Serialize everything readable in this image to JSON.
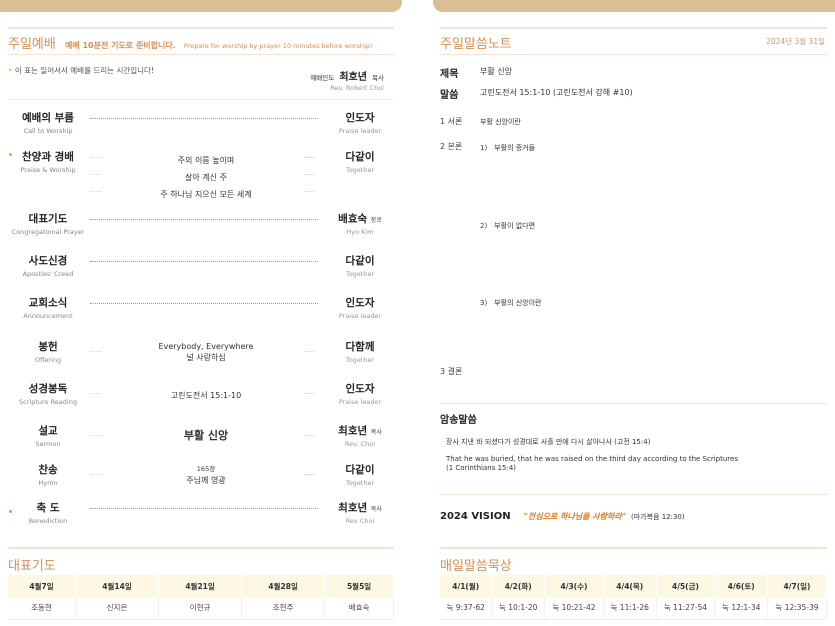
{
  "worship": {
    "title": "주일예배",
    "notice_ko": "예배 10분전 기도로 준비합니다.",
    "notice_en": "Prepare for worship by prayer 10 minutes before worship!",
    "standing_note": "이 표는 일어서서 예배를 드리는 시간입니다!",
    "leader_label": "예배인도",
    "leader_name": "최호년",
    "leader_title": "목사",
    "leader_en": "Rev. Robert Choi",
    "order": [
      {
        "ko": "예배의 부름",
        "en": "Call to Worship",
        "who": "인도자",
        "who_title": "",
        "who_en": "Praise leader",
        "content": [],
        "standing": false
      },
      {
        "ko": "찬양과 경배",
        "en": "Praise & Worship",
        "who": "다같이",
        "who_title": "",
        "who_en": "Together",
        "content": [
          "주의 이름 높이며",
          "살아 계신 주",
          "주 하나님 지으신 모든 세계"
        ],
        "standing": true
      },
      {
        "ko": "대표기도",
        "en": "Congregational Prayer",
        "who": "배효숙",
        "who_title": "장로",
        "who_en": "Hyo Kim",
        "content": [],
        "standing": false
      },
      {
        "ko": "사도신경",
        "en": "Apostles' Creed",
        "who": "다같이",
        "who_title": "",
        "who_en": "Together",
        "content": [],
        "standing": false
      },
      {
        "ko": "교회소식",
        "en": "Announcement",
        "who": "인도자",
        "who_title": "",
        "who_en": "Praise leader",
        "content": [],
        "standing": false
      },
      {
        "ko": "봉헌",
        "en": "Offering",
        "who": "다함께",
        "who_title": "",
        "who_en": "Together",
        "content": [
          "Everybody, Everywhere",
          "널 사랑하심"
        ],
        "standing": false
      },
      {
        "ko": "성경봉독",
        "en": "Scripture Reading",
        "who": "인도자",
        "who_title": "",
        "who_en": "Praise leader",
        "content": [
          "고린도전서 15:1-10"
        ],
        "standing": false
      },
      {
        "ko": "설교",
        "en": "Sermon",
        "who": "최호년",
        "who_title": "목사",
        "who_en": "Rev. Choi",
        "content": [
          "부활 신앙"
        ],
        "standing": false
      },
      {
        "ko": "찬송",
        "en": "Hymn",
        "who": "다같이",
        "who_title": "",
        "who_en": "Together",
        "content": [
          "165장",
          "주님께 영광"
        ],
        "standing": false
      },
      {
        "ko": "축 도",
        "en": "Benediction",
        "who": "최호년",
        "who_title": "목사",
        "who_en": "Rev Choi",
        "content": [],
        "standing": true
      }
    ]
  },
  "prayer": {
    "title": "대표기도",
    "dates": [
      "4월7일",
      "4월14일",
      "4월21일",
      "4월28일",
      "5월5일"
    ],
    "names": [
      "조동현",
      "신지은",
      "이현규",
      "조현주",
      "배효숙"
    ]
  },
  "notes": {
    "title": "주일말씀노트",
    "date": "2024년 3월 31일",
    "subject_label": "제목",
    "subject": "부활 신앙",
    "scripture_label": "말씀",
    "scripture": "고린도전서 15:1-10 (고린도전서 강해 #10)",
    "intro_label": "1 서론",
    "intro": "부활 신앙이란",
    "body_label": "2 본론",
    "points": [
      "1)　부활의 증거들",
      "2)　부활이 없다면",
      "3)　부활의 신앙이란"
    ],
    "conclusion_label": "3 결론"
  },
  "memory": {
    "title": "암송말씀",
    "ko": "장사 지낸 바 되셨다가 성경대로 사흘 만에 다시 살아나사 (고전 15:4)",
    "en1": "That he was buried, that he was raised on the third day according to the Scriptures",
    "en2": "(1 Corinthians 15:4)"
  },
  "vision": {
    "label": "2024 VISION",
    "quote": "\"전심으로 하나님을 사랑하라\"",
    "ref": "(마가복음 12:30)"
  },
  "daily": {
    "title": "매일말씀묵상",
    "days": [
      "4/1(월)",
      "4/2(화)",
      "4/3(수)",
      "4/4(목)",
      "4/5(금)",
      "4/6(토)",
      "4/7(일)"
    ],
    "readings": [
      "눅 9:37-62",
      "눅 10:1-20",
      "눅 10:21-42",
      "눅 11:1-26",
      "눅 11:27-54",
      "눅 12:1-34",
      "눅 12:35-39"
    ]
  },
  "colors": {
    "accent": "#d58f55",
    "tab": "#d9bf92",
    "vision": "#e07a1f",
    "table_head": "#fdf8e4"
  }
}
